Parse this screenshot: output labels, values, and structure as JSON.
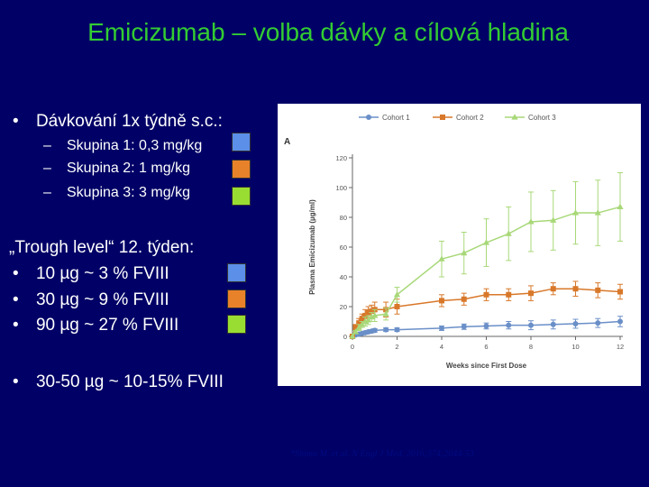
{
  "title": "Emicizumab – volba dávky a cílová hladina",
  "dosing": {
    "bullet": "•",
    "heading": "Dávkování 1x týdně s.c.:",
    "groups": [
      {
        "dash": "–",
        "label": "Skupina 1: 0,3 mg/kg",
        "color": "#5b8fe8"
      },
      {
        "dash": "–",
        "label": "Skupina 2: 1 mg/kg",
        "color": "#e8822a"
      },
      {
        "dash": "–",
        "label": "Skupina 3: 3 mg/kg",
        "color": "#99dd33"
      }
    ]
  },
  "trough": {
    "heading": "„Trough level“ 12. týden:",
    "items": [
      {
        "bullet": "•",
        "label": "10 µg ~ 3 % FVIII",
        "color": "#5b8fe8"
      },
      {
        "bullet": "•",
        "label": "30 µg ~ 9 % FVIII",
        "color": "#e8822a"
      },
      {
        "bullet": "•",
        "label": "90 µg ~ 27 % FVIII",
        "color": "#99dd33"
      }
    ]
  },
  "target": {
    "bullet": "•",
    "label": "30-50 µg ~ 10-15% FVIII"
  },
  "citation": "*Shima M. et al. N Engl J Med. 2016;374:2044-53",
  "chart_data": {
    "type": "line",
    "panel_label": "A",
    "xlabel": "Weeks since First Dose",
    "ylabel": "Plasma Emicizumab (µg/ml)",
    "xlim": [
      0,
      12
    ],
    "ylim": [
      0,
      120
    ],
    "xticks": [
      0,
      2,
      4,
      6,
      8,
      10,
      12
    ],
    "yticks": [
      0,
      20,
      40,
      60,
      80,
      100,
      120
    ],
    "legend_position": "top",
    "series": [
      {
        "name": "Cohort 1",
        "color": "#6a8fc8",
        "marker": "circle",
        "x": [
          0,
          0.14,
          0.29,
          0.43,
          0.57,
          0.71,
          0.86,
          1,
          1.5,
          2,
          4,
          5,
          6,
          7,
          8,
          9,
          10,
          11,
          12
        ],
        "y": [
          0,
          1,
          1.5,
          2,
          2.5,
          3,
          3.5,
          4,
          4.5,
          4.5,
          5.5,
          6.5,
          7,
          7.5,
          7.5,
          8,
          8.5,
          9,
          10
        ],
        "err": [
          0,
          0.5,
          0.5,
          0.8,
          1,
          1,
          1,
          1.2,
          1.2,
          1.2,
          1.5,
          1.8,
          2,
          2.5,
          3,
          3,
          3,
          3,
          3.5
        ]
      },
      {
        "name": "Cohort 2",
        "color": "#d8782a",
        "marker": "square",
        "x": [
          0,
          0.14,
          0.29,
          0.43,
          0.57,
          0.71,
          0.86,
          1,
          1.5,
          2,
          4,
          5,
          6,
          7,
          8,
          9,
          10,
          11,
          12
        ],
        "y": [
          0,
          6,
          9,
          12,
          14,
          16,
          17,
          18,
          18,
          20,
          24,
          25,
          28,
          28,
          29,
          32,
          32,
          31,
          30
        ],
        "err": [
          0,
          2,
          3,
          3,
          4,
          4,
          4,
          5,
          5,
          5,
          4,
          4,
          4,
          4,
          5,
          4,
          5,
          5,
          5
        ]
      },
      {
        "name": "Cohort 3",
        "color": "#a8d878",
        "marker": "triangle",
        "x": [
          0,
          0.14,
          0.29,
          0.43,
          0.57,
          0.71,
          0.86,
          1,
          1.5,
          2,
          4,
          5,
          6,
          7,
          8,
          9,
          10,
          11,
          12
        ],
        "y": [
          0,
          3,
          6,
          8,
          10,
          11,
          13,
          14,
          15,
          28,
          52,
          56,
          63,
          69,
          77,
          78,
          83,
          83,
          87
        ],
        "err": [
          0,
          1,
          2,
          2,
          3,
          3,
          3,
          4,
          4,
          5,
          12,
          14,
          16,
          18,
          20,
          20,
          21,
          22,
          23
        ]
      }
    ]
  }
}
